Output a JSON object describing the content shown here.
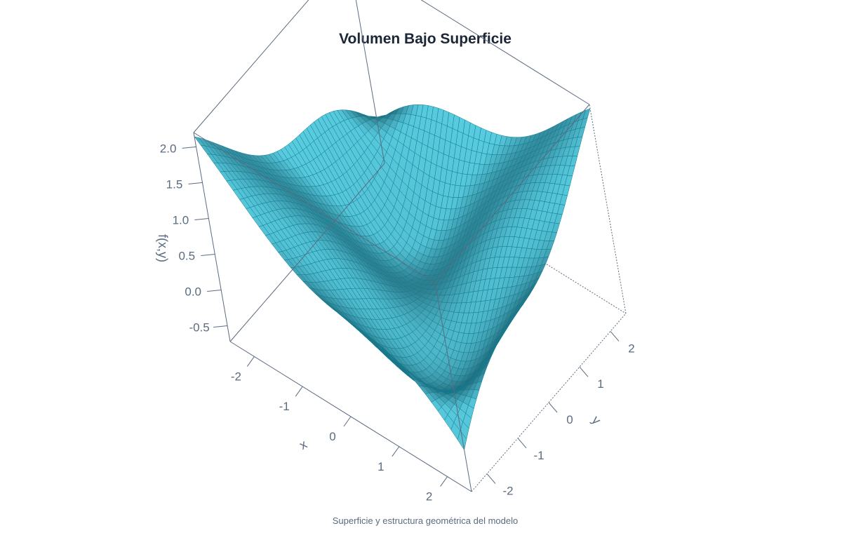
{
  "chart_data": {
    "type": "surface",
    "title": "Volumen Bajo Superficie",
    "caption": "Superficie y estructura geométrica del modelo",
    "xlabel": "x",
    "ylabel": "y",
    "zlabel": "f(x,y)",
    "xlim": [
      -2.5,
      2.5
    ],
    "ylim": [
      -2.5,
      2.5
    ],
    "zlim": [
      -0.72,
      2.2
    ],
    "x_ticks": [
      "-2",
      "-1",
      "0",
      "1",
      "2"
    ],
    "y_ticks": [
      "-2",
      "-1",
      "0",
      "1",
      "2"
    ],
    "z_ticks": [
      "-0.5",
      "0.0",
      "0.5",
      "1.0",
      "1.5",
      "2.0"
    ],
    "grid": false,
    "colors": {
      "surface_light": "#5fd6ea",
      "surface_dark": "#0f4552",
      "mesh": "#0d7d93",
      "box": "#5b6b80",
      "text": "#5b6b80",
      "title": "#1b2636"
    },
    "corner_values": [
      {
        "x": -2.5,
        "y": -2.5,
        "z": -0.65
      },
      {
        "x": -2.5,
        "y": 2.5,
        "z": 2.2
      },
      {
        "x": 2.5,
        "y": -2.5,
        "z": 2.2
      },
      {
        "x": 2.5,
        "y": 2.5,
        "z": 2.2
      },
      {
        "x": 0,
        "y": 0,
        "z": -0.67
      }
    ]
  }
}
